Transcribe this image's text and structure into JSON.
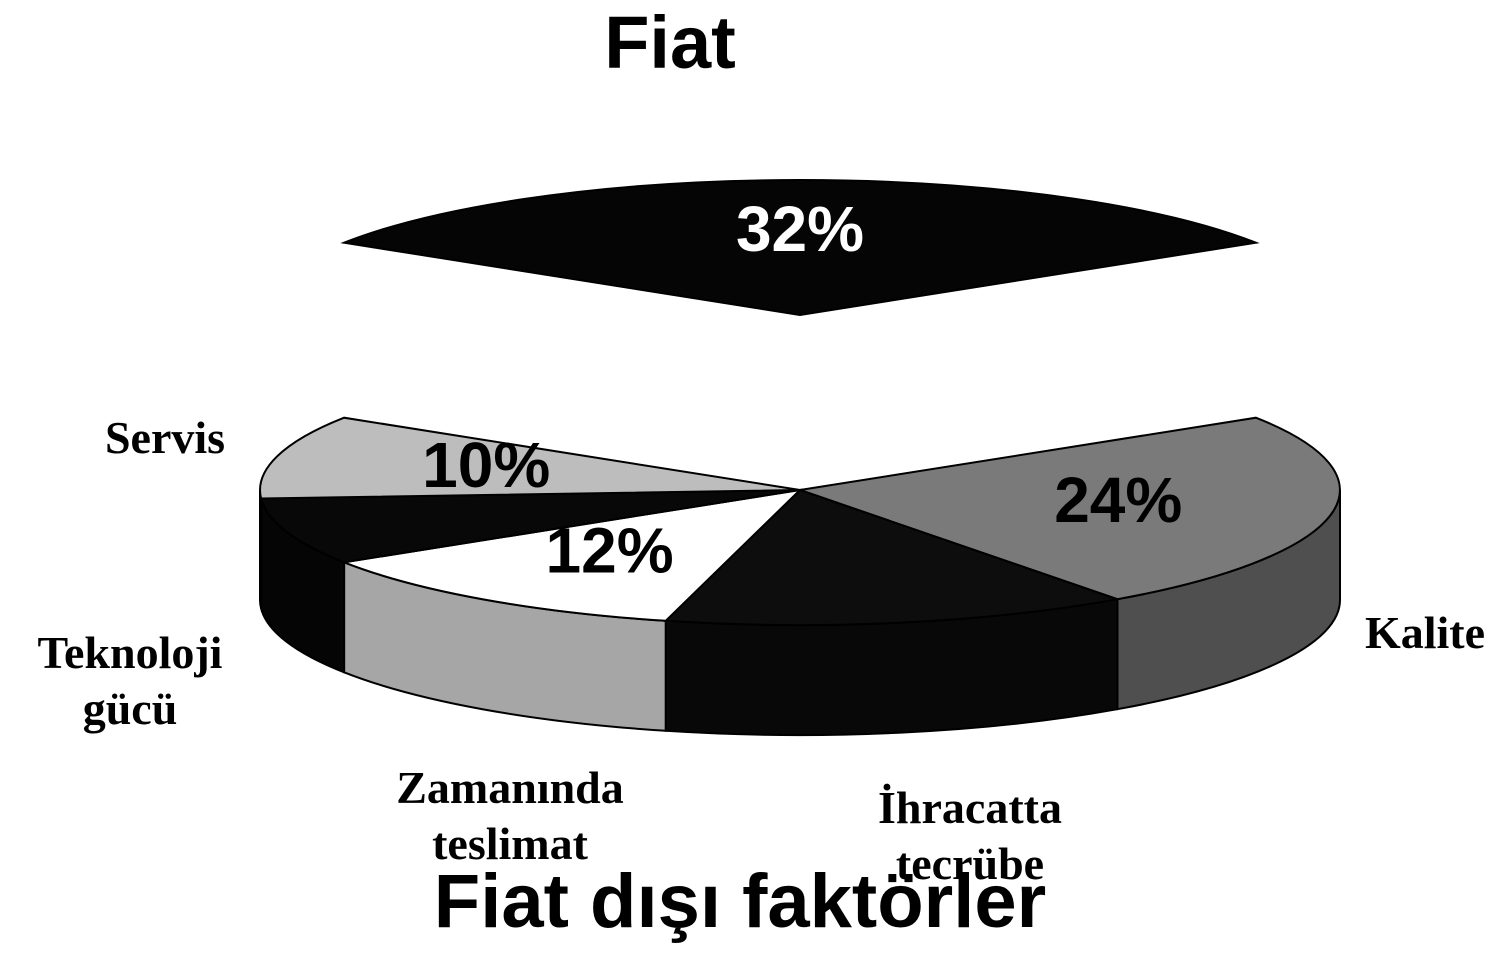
{
  "chart_data": {
    "type": "pie",
    "title": "Fiat dışı faktörler",
    "categories": [
      "Fiat",
      "Kalite",
      "İhracatta tecrübe",
      "Zamanında teslimat",
      "Teknoloji gücü",
      "Servis"
    ],
    "values": [
      32,
      24,
      14,
      12,
      8,
      10
    ],
    "value_labels": [
      "32%",
      "24%",
      null,
      "12%",
      null,
      "10%"
    ],
    "colors": [
      "#050505",
      "#7a7a7a",
      "#0d0d0d",
      "#ffffff",
      "#080808",
      "#bdbdbd"
    ],
    "explode": [
      true,
      false,
      false,
      false,
      false,
      false
    ]
  }
}
